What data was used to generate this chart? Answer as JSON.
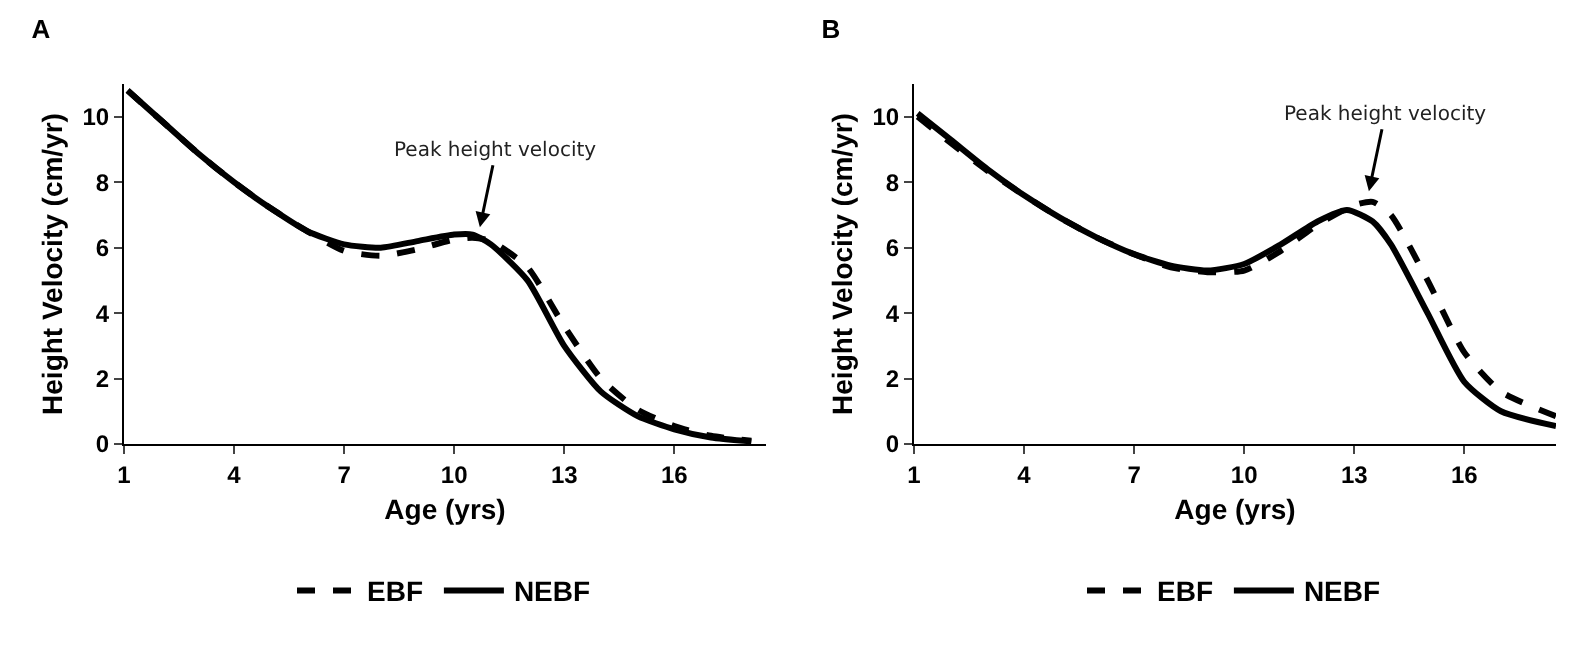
{
  "chart_data": [
    {
      "type": "line",
      "title": "A",
      "xlabel": "Age (yrs)",
      "ylabel": "Height Velocity (cm/yr)",
      "xlim": [
        1,
        18.5
      ],
      "xticks": [
        1,
        4,
        7,
        10,
        13,
        16
      ],
      "ylim": [
        0,
        11
      ],
      "yticks": [
        0,
        2,
        4,
        6,
        8,
        10
      ],
      "grid": false,
      "legend": "bottom",
      "marker": "none",
      "annotations": [
        {
          "text": "Peak height velocity",
          "x": 10.7,
          "y": 6.5
        }
      ],
      "series": [
        {
          "name": "EBF",
          "color": "#000000",
          "line_style": "dashed",
          "x": [
            1.1,
            2,
            3,
            4,
            5,
            6,
            7,
            8,
            9,
            10,
            10.5,
            11,
            12,
            13,
            14,
            15,
            16,
            17,
            18.1
          ],
          "values": [
            10.8,
            9.9,
            8.9,
            8.0,
            7.2,
            6.5,
            5.9,
            5.75,
            5.95,
            6.25,
            6.3,
            6.2,
            5.4,
            3.6,
            2.0,
            1.05,
            0.55,
            0.25,
            0.1
          ]
        },
        {
          "name": "NEBF",
          "color": "#000000",
          "line_style": "solid",
          "x": [
            1.1,
            2,
            3,
            4,
            5,
            6,
            7,
            8,
            9,
            10,
            10.5,
            11,
            12,
            13,
            14,
            15,
            16,
            17,
            18.1
          ],
          "values": [
            10.8,
            9.9,
            8.9,
            8.0,
            7.2,
            6.5,
            6.1,
            6.0,
            6.2,
            6.4,
            6.4,
            6.1,
            5.0,
            3.0,
            1.6,
            0.85,
            0.45,
            0.2,
            0.08
          ]
        }
      ]
    },
    {
      "type": "line",
      "title": "B",
      "xlabel": "Age (yrs)",
      "ylabel": "Height Velocity (cm/yr)",
      "xlim": [
        1,
        18.5
      ],
      "xticks": [
        1,
        4,
        7,
        10,
        13,
        16
      ],
      "ylim": [
        0,
        11
      ],
      "yticks": [
        0,
        2,
        4,
        6,
        8,
        10
      ],
      "grid": false,
      "legend": "bottom",
      "marker": "none",
      "annotations": [
        {
          "text": "Peak height velocity",
          "x": 13.4,
          "y": 7.6
        }
      ],
      "series": [
        {
          "name": "EBF",
          "color": "#000000",
          "line_style": "dashed",
          "x": [
            1.1,
            2,
            3,
            4,
            5,
            6,
            7,
            8,
            9,
            10,
            11,
            12,
            13,
            13.5,
            14,
            15,
            16,
            17,
            18.5
          ],
          "values": [
            10.0,
            9.2,
            8.35,
            7.6,
            6.9,
            6.3,
            5.8,
            5.4,
            5.25,
            5.3,
            5.9,
            6.7,
            7.3,
            7.4,
            7.0,
            5.0,
            2.8,
            1.6,
            0.85
          ]
        },
        {
          "name": "NEBF",
          "color": "#000000",
          "line_style": "solid",
          "x": [
            1.1,
            2,
            3,
            4,
            5,
            6,
            7,
            8,
            9,
            10,
            11,
            12,
            12.8,
            13.5,
            14,
            15,
            16,
            17,
            18.5
          ],
          "values": [
            10.1,
            9.3,
            8.4,
            7.6,
            6.9,
            6.3,
            5.8,
            5.45,
            5.3,
            5.5,
            6.1,
            6.8,
            7.15,
            6.8,
            6.1,
            4.0,
            1.9,
            1.0,
            0.55
          ]
        }
      ]
    }
  ]
}
